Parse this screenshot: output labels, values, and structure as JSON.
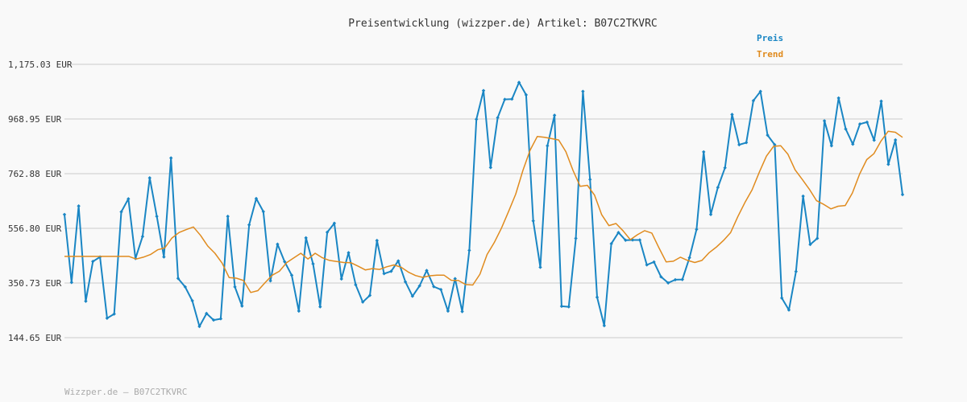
{
  "chart_data": {
    "type": "line",
    "title": "Preisentwicklung (wizzper.de) Artikel: B07C2TKVRC",
    "xlabel": "",
    "ylabel": "",
    "ylim": [
      144.65,
      1175.03
    ],
    "yticks": [
      "1,175.03 EUR",
      "968.95 EUR",
      "762.88 EUR",
      "556.80 EUR",
      "350.73 EUR",
      "144.65 EUR"
    ],
    "grid": true,
    "legend_position": "top-right",
    "series": [
      {
        "name": "Preis",
        "color": "#1a86c4",
        "values": [
          609,
          353,
          641,
          282,
          432,
          449,
          218,
          234,
          619,
          668,
          443,
          526,
          747,
          602,
          449,
          822,
          368,
          336,
          284,
          187,
          236,
          211,
          216,
          602,
          336,
          264,
          570,
          669,
          620,
          359,
          497,
          431,
          380,
          245,
          521,
          423,
          261,
          542,
          576,
          366,
          465,
          344,
          279,
          304,
          511,
          386,
          395,
          434,
          355,
          301,
          340,
          398,
          337,
          326,
          245,
          367,
          243,
          474,
          968,
          1076,
          786,
          974,
          1043,
          1044,
          1107,
          1060,
          585,
          410,
          868,
          983,
          263,
          261,
          519,
          1073,
          741,
          297,
          190,
          499,
          541,
          512,
          513,
          513,
          419,
          430,
          374,
          351,
          363,
          364,
          446,
          553,
          845,
          609,
          711,
          785,
          986,
          872,
          880,
          1038,
          1073,
          908,
          872,
          294,
          249,
          394,
          678,
          496,
          519,
          962,
          868,
          1048,
          931,
          874,
          950,
          957,
          889,
          1036,
          798,
          890,
          684
        ]
      },
      {
        "name": "Trend",
        "color": "#e08b1e",
        "values": [
          451,
          451,
          451,
          451,
          451,
          451,
          451,
          451,
          451,
          451,
          441,
          448,
          458,
          476,
          483,
          520,
          541,
          552,
          562,
          530,
          490,
          463,
          426,
          371,
          369,
          360,
          315,
          322,
          352,
          380,
          395,
          427,
          445,
          463,
          441,
          463,
          446,
          436,
          432,
          428,
          427,
          414,
          400,
          405,
          402,
          412,
          419,
          410,
          392,
          379,
          372,
          378,
          380,
          380,
          361,
          360,
          345,
          343,
          384,
          458,
          503,
          557,
          620,
          686,
          775,
          851,
          903,
          900,
          895,
          890,
          846,
          775,
          715,
          719,
          682,
          608,
          567,
          575,
          547,
          514,
          533,
          548,
          539,
          483,
          430,
          433,
          448,
          436,
          428,
          436,
          465,
          486,
          511,
          541,
          601,
          654,
          702,
          768,
          829,
          866,
          868,
          836,
          777,
          741,
          704,
          661,
          647,
          630,
          640,
          643,
          690,
          761,
          816,
          838,
          886,
          923,
          919,
          900
        ]
      }
    ]
  },
  "footer": "Wizzper.de – B07C2TKVRC"
}
